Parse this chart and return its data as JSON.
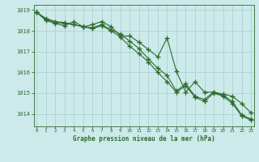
{
  "x": [
    0,
    1,
    2,
    3,
    4,
    5,
    6,
    7,
    8,
    9,
    10,
    11,
    12,
    13,
    14,
    15,
    16,
    17,
    18,
    19,
    20,
    21,
    22,
    23
  ],
  "line1": [
    1018.9,
    1018.6,
    1018.45,
    1018.4,
    1018.3,
    1018.2,
    1018.15,
    1018.3,
    1018.05,
    1017.85,
    1017.5,
    1017.15,
    1016.65,
    1016.2,
    1015.85,
    1015.1,
    1015.45,
    1014.85,
    1014.7,
    1015.05,
    1014.9,
    1014.6,
    1013.95,
    1013.75
  ],
  "line2": [
    1018.9,
    1018.55,
    1018.4,
    1018.35,
    1018.3,
    1018.2,
    1018.1,
    1018.25,
    1018.0,
    1017.7,
    1017.25,
    1016.9,
    1016.5,
    1016.0,
    1015.55,
    1015.05,
    1015.35,
    1014.8,
    1014.6,
    1015.0,
    1014.85,
    1014.5,
    1013.9,
    1013.7
  ],
  "line3": [
    1018.9,
    1018.5,
    1018.35,
    1018.25,
    1018.45,
    1018.2,
    1018.3,
    1018.45,
    1018.2,
    1017.75,
    1017.75,
    1017.45,
    1017.1,
    1016.75,
    1017.65,
    1016.05,
    1015.05,
    1015.55,
    1015.05,
    1015.05,
    1014.95,
    1014.85,
    1014.5,
    1014.05
  ],
  "xlabel": "Graphe pression niveau de la mer (hPa)",
  "bg_color": "#cceaea",
  "grid_color": "#aacccc",
  "line_color": "#2d6b2d",
  "text_color": "#2d6b2d",
  "yticks": [
    1014,
    1015,
    1016,
    1017,
    1018,
    1019
  ],
  "ylim": [
    1013.4,
    1019.25
  ],
  "xlim": [
    -0.3,
    23.3
  ],
  "xtick_labels": [
    "0",
    "1",
    "2",
    "3",
    "4",
    "5",
    "6",
    "7",
    "8",
    "9",
    "10",
    "11",
    "12",
    "13",
    "14",
    "15",
    "16",
    "17",
    "18",
    "19",
    "20",
    "21",
    "22",
    "23"
  ]
}
